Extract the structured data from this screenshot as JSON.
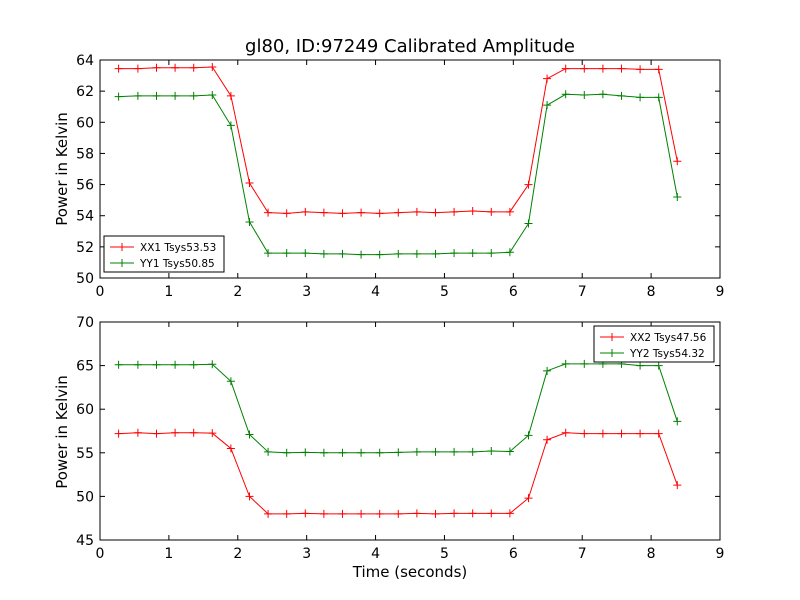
{
  "chart_data": [
    {
      "type": "line",
      "title": "gl80, ID:97249 Calibrated Amplitude",
      "xlabel": "",
      "ylabel": "Power in Kelvin",
      "xlim": [
        0,
        9
      ],
      "ylim": [
        50,
        64
      ],
      "xticks": [
        0,
        1,
        2,
        3,
        4,
        5,
        6,
        7,
        8,
        9
      ],
      "yticks": [
        50,
        52,
        54,
        56,
        58,
        60,
        62,
        64
      ],
      "grid": false,
      "legend_position": "lower-left",
      "x": [
        0.27,
        0.55,
        0.82,
        1.09,
        1.36,
        1.63,
        1.9,
        2.17,
        2.44,
        2.71,
        2.98,
        3.25,
        3.52,
        3.79,
        4.06,
        4.33,
        4.6,
        4.87,
        5.14,
        5.41,
        5.68,
        5.95,
        6.22,
        6.49,
        6.76,
        7.03,
        7.3,
        7.57,
        7.84,
        8.11,
        8.38
      ],
      "series": [
        {
          "name": "XX1 Tsys53.53",
          "color": "#ff0000",
          "values": [
            63.45,
            63.45,
            63.5,
            63.5,
            63.5,
            63.55,
            61.7,
            56.1,
            54.2,
            54.15,
            54.25,
            54.2,
            54.15,
            54.2,
            54.15,
            54.2,
            54.25,
            54.2,
            54.25,
            54.3,
            54.25,
            54.25,
            56.0,
            62.8,
            63.45,
            63.45,
            63.45,
            63.45,
            63.4,
            63.4,
            57.5
          ]
        },
        {
          "name": "YY1 Tsys50.85",
          "color": "#008000",
          "values": [
            61.65,
            61.7,
            61.7,
            61.7,
            61.7,
            61.75,
            59.8,
            53.6,
            51.6,
            51.6,
            51.6,
            51.55,
            51.55,
            51.5,
            51.5,
            51.55,
            51.55,
            51.55,
            51.6,
            51.6,
            51.6,
            51.65,
            53.5,
            61.1,
            61.8,
            61.75,
            61.8,
            61.7,
            61.6,
            61.6,
            55.2
          ]
        }
      ]
    },
    {
      "type": "line",
      "title": "",
      "xlabel": "Time (seconds)",
      "ylabel": "Power in Kelvin",
      "xlim": [
        0,
        9
      ],
      "ylim": [
        45,
        70
      ],
      "xticks": [
        0,
        1,
        2,
        3,
        4,
        5,
        6,
        7,
        8,
        9
      ],
      "yticks": [
        45,
        50,
        55,
        60,
        65,
        70
      ],
      "grid": false,
      "legend_position": "upper-right",
      "x": [
        0.27,
        0.55,
        0.82,
        1.09,
        1.36,
        1.63,
        1.9,
        2.17,
        2.44,
        2.71,
        2.98,
        3.25,
        3.52,
        3.79,
        4.06,
        4.33,
        4.6,
        4.87,
        5.14,
        5.41,
        5.68,
        5.95,
        6.22,
        6.49,
        6.76,
        7.03,
        7.3,
        7.57,
        7.84,
        8.11,
        8.38
      ],
      "series": [
        {
          "name": "XX2 Tsys47.56",
          "color": "#ff0000",
          "values": [
            57.2,
            57.3,
            57.2,
            57.3,
            57.3,
            57.25,
            55.5,
            50.0,
            48.0,
            48.0,
            48.05,
            48.0,
            48.0,
            48.0,
            48.0,
            48.0,
            48.05,
            48.0,
            48.05,
            48.05,
            48.05,
            48.05,
            49.8,
            56.5,
            57.3,
            57.2,
            57.2,
            57.2,
            57.2,
            57.2,
            51.3
          ]
        },
        {
          "name": "YY2 Tsys54.32",
          "color": "#008000",
          "values": [
            65.1,
            65.1,
            65.1,
            65.1,
            65.1,
            65.15,
            63.2,
            57.1,
            55.1,
            55.0,
            55.05,
            55.0,
            55.0,
            55.0,
            55.0,
            55.05,
            55.1,
            55.1,
            55.1,
            55.1,
            55.2,
            55.15,
            57.0,
            64.4,
            65.2,
            65.2,
            65.2,
            65.2,
            65.0,
            65.0,
            58.6
          ]
        }
      ]
    }
  ]
}
